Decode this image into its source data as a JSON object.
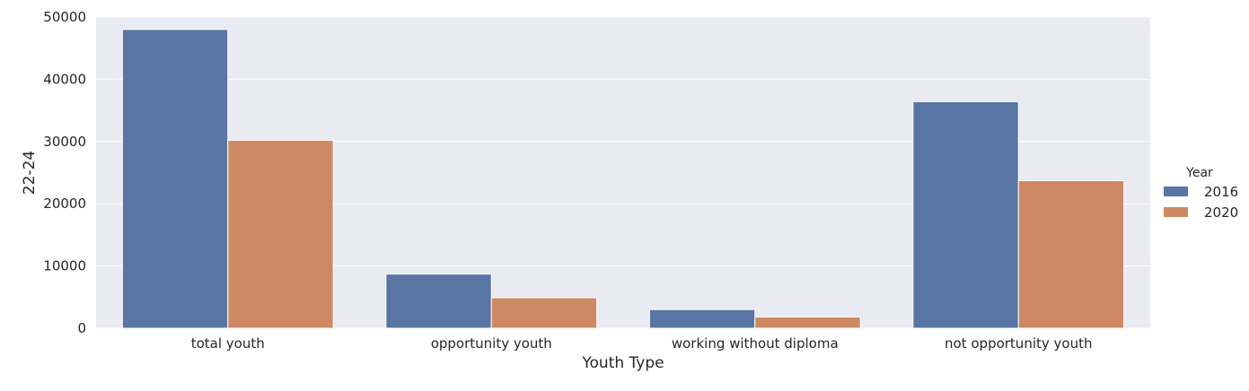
{
  "chart_data": {
    "type": "bar",
    "title": "",
    "xlabel": "Youth Type",
    "ylabel": "22-24",
    "categories": [
      "total youth",
      "opportunity youth",
      "working without diploma",
      "not opportunity youth"
    ],
    "series": [
      {
        "name": "2016",
        "color": "#5875a4",
        "values": [
          48000,
          8700,
          3000,
          36400
        ]
      },
      {
        "name": "2020",
        "color": "#cc8963",
        "values": [
          30200,
          4900,
          1800,
          23700
        ]
      }
    ],
    "ylim": [
      0,
      50000
    ],
    "yticks": [
      0,
      10000,
      20000,
      30000,
      40000,
      50000
    ],
    "grid": true,
    "legend": {
      "title": "Year",
      "placement": "right"
    },
    "background_color": "#eaeaf2",
    "grid_color": "#ffffff"
  }
}
